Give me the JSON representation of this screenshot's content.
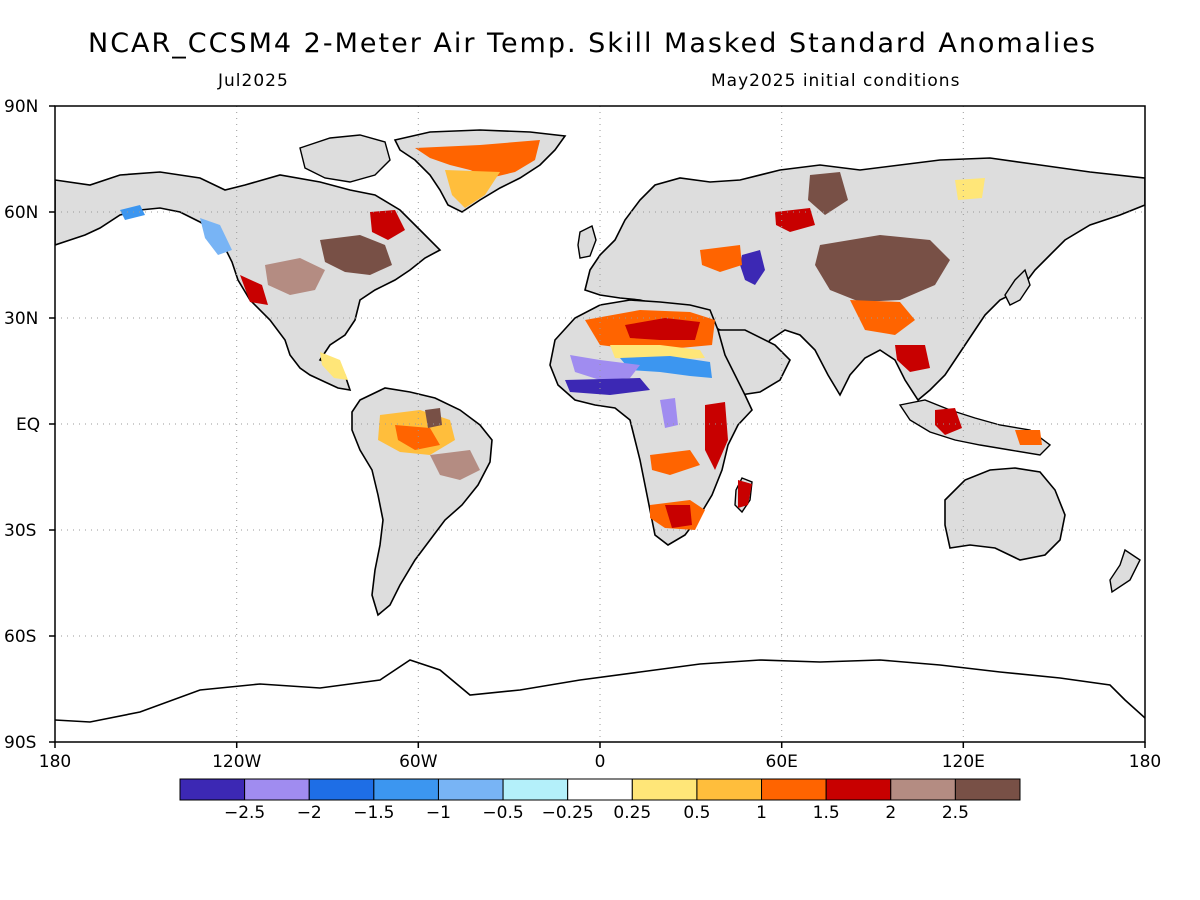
{
  "header": {
    "title": "NCAR_CCSM4 2-Meter Air Temp. Skill Masked Standard Anomalies",
    "valid": "Jul2025",
    "initial": "May2025 initial conditions"
  },
  "axes": {
    "lat_labels": [
      "90N",
      "60N",
      "30N",
      "EQ",
      "30S",
      "60S",
      "90S"
    ],
    "lon_labels": [
      "180",
      "120W",
      "60W",
      "0",
      "60E",
      "120E",
      "180"
    ]
  },
  "colorbar": {
    "colors": [
      "#3c28b4",
      "#a08cf0",
      "#1e6ee6",
      "#3c96f0",
      "#78b4f5",
      "#b4f0fa",
      "#ffffff",
      "#ffe678",
      "#ffbe3c",
      "#ff6400",
      "#c80000",
      "#b48c82",
      "#785046"
    ],
    "labels": [
      "-2.5",
      "-2",
      "-1.5",
      "-1",
      "-0.5",
      "-0.25",
      "0.25",
      "0.5",
      "1",
      "1.5",
      "2",
      "2.5"
    ]
  },
  "land_color": "#dddddd",
  "coast_color": "#000000"
}
